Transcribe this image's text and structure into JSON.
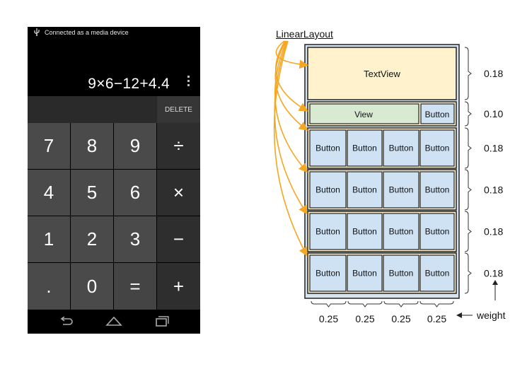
{
  "phone": {
    "status_text": "Connected as a media device",
    "expression": "9×6−12+4.4",
    "delete_label": "DELETE",
    "keys": [
      [
        "7",
        "8",
        "9",
        "÷"
      ],
      [
        "4",
        "5",
        "6",
        "×"
      ],
      [
        "1",
        "2",
        "3",
        "−"
      ],
      [
        ".",
        "0",
        "=",
        "+"
      ]
    ],
    "icons": {
      "usb": "usb-icon",
      "overflow": "overflow-menu-icon",
      "back": "back-icon",
      "home": "home-icon",
      "recents": "recents-icon"
    }
  },
  "diagram": {
    "title": "LinearLayout",
    "textview_label": "TextView",
    "view_label": "View",
    "button_label": "Button",
    "row_weights": [
      "0.18",
      "0.10",
      "0.18",
      "0.18",
      "0.18",
      "0.18"
    ],
    "col_weights": [
      "0.25",
      "0.25",
      "0.25",
      "0.25"
    ],
    "weight_label": "weight",
    "colors": {
      "textview_fill": "#fff2cc",
      "view_fill": "#d9ead3",
      "button_fill": "#cfe2f3",
      "outer_fill": "#d6e4f0",
      "arrow": "#f5a623"
    }
  }
}
